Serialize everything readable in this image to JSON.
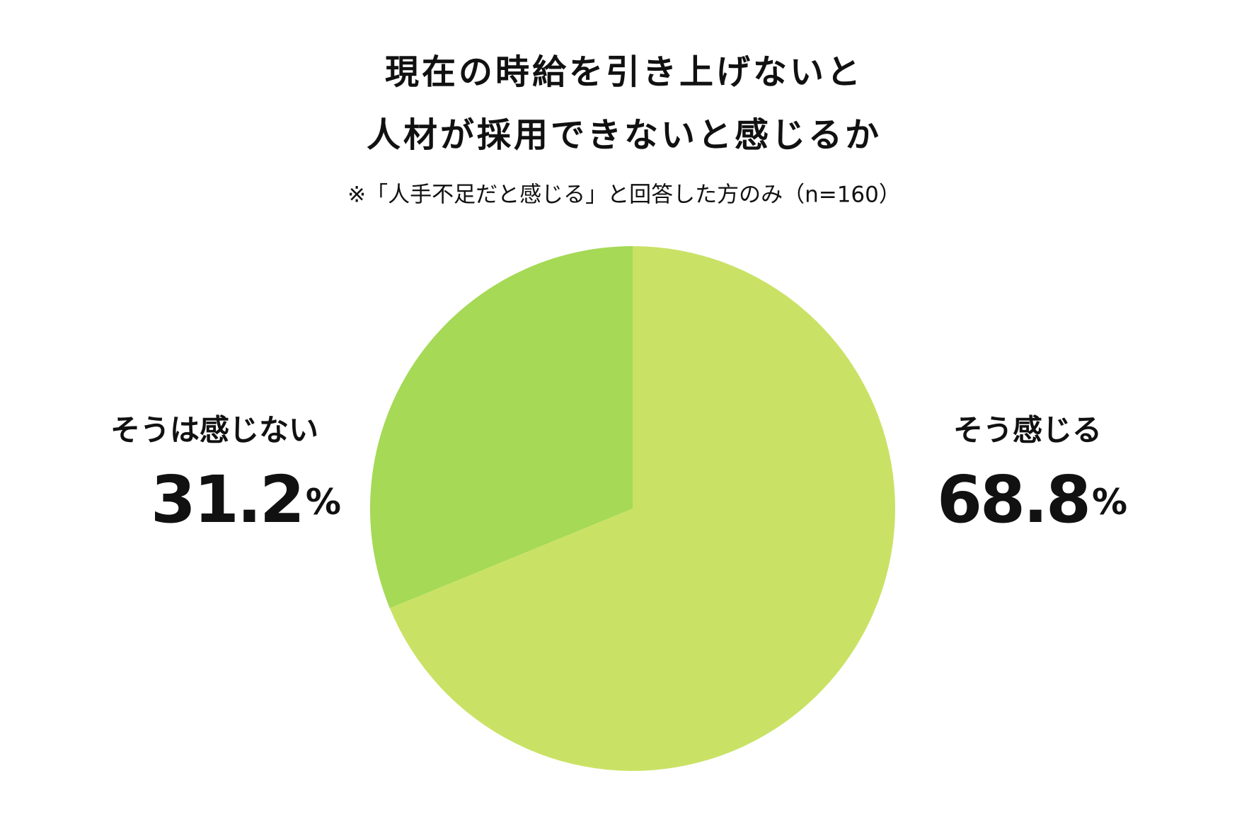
{
  "chart_data": {
    "type": "pie",
    "title": [
      "現在の時給を引き上げないと",
      "人材が採用できないと感じるか"
    ],
    "subtitle": "※「人手不足だと感じる」と回答した方のみ（n=160）",
    "categories": [
      "そう感じる",
      "そうは感じない"
    ],
    "values": [
      68.8,
      31.2
    ],
    "value_labels": [
      "68.8%",
      "31.2%"
    ],
    "colors": [
      "#c9e265",
      "#a5d956"
    ]
  }
}
